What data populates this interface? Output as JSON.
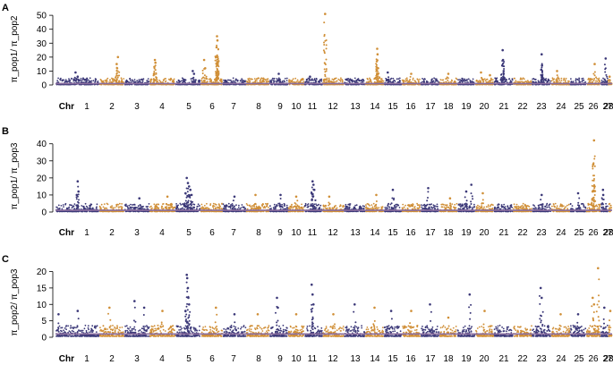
{
  "figure": {
    "colors": {
      "odd_chr": "#3b3878",
      "even_chr": "#d08f37",
      "baseline": "#8a6d9e"
    }
  },
  "chart_data": [
    {
      "type": "scatter",
      "panel_label": "A",
      "ylabel": "π_pop1/ π_pop2",
      "chr_axis_prefix": "Chr",
      "x_categories": [
        "1",
        "2",
        "3",
        "4",
        "5",
        "6",
        "7",
        "8",
        "9",
        "10",
        "11",
        "12",
        "13",
        "14",
        "15",
        "16",
        "17",
        "18",
        "19",
        "20",
        "21",
        "22",
        "23",
        "24",
        "25",
        "26",
        "27",
        "28"
      ],
      "yticks": [
        0,
        10,
        20,
        30,
        40,
        50
      ],
      "ylim": [
        0,
        52
      ],
      "baseline": 1,
      "grid": false,
      "peaks": [
        {
          "chr": "1",
          "pos": 0.45,
          "y": 9
        },
        {
          "chr": "1",
          "pos": 0.5,
          "y": 6
        },
        {
          "chr": "2",
          "pos": 0.75,
          "y": 20
        },
        {
          "chr": "2",
          "pos": 0.7,
          "y": 15
        },
        {
          "chr": "2",
          "pos": 0.72,
          "y": 12
        },
        {
          "chr": "4",
          "pos": 0.2,
          "y": 18
        },
        {
          "chr": "4",
          "pos": 0.22,
          "y": 16
        },
        {
          "chr": "4",
          "pos": 0.18,
          "y": 13
        },
        {
          "chr": "5",
          "pos": 0.7,
          "y": 10
        },
        {
          "chr": "5",
          "pos": 0.75,
          "y": 8
        },
        {
          "chr": "6",
          "pos": 0.15,
          "y": 18
        },
        {
          "chr": "6",
          "pos": 0.2,
          "y": 12
        },
        {
          "chr": "6",
          "pos": 0.75,
          "y": 35
        },
        {
          "chr": "6",
          "pos": 0.77,
          "y": 32
        },
        {
          "chr": "6",
          "pos": 0.73,
          "y": 27
        },
        {
          "chr": "6",
          "pos": 0.78,
          "y": 20
        },
        {
          "chr": "6",
          "pos": 0.74,
          "y": 15
        },
        {
          "chr": "9",
          "pos": 0.5,
          "y": 8
        },
        {
          "chr": "11",
          "pos": 0.3,
          "y": 6
        },
        {
          "chr": "12",
          "pos": 0.1,
          "y": 51
        },
        {
          "chr": "14",
          "pos": 0.65,
          "y": 26
        },
        {
          "chr": "14",
          "pos": 0.67,
          "y": 22
        },
        {
          "chr": "14",
          "pos": 0.63,
          "y": 17
        },
        {
          "chr": "14",
          "pos": 0.7,
          "y": 12
        },
        {
          "chr": "15",
          "pos": 0.2,
          "y": 9
        },
        {
          "chr": "16",
          "pos": 0.5,
          "y": 8
        },
        {
          "chr": "18",
          "pos": 0.5,
          "y": 8
        },
        {
          "chr": "20",
          "pos": 0.3,
          "y": 9
        },
        {
          "chr": "20",
          "pos": 0.8,
          "y": 7
        },
        {
          "chr": "21",
          "pos": 0.45,
          "y": 25
        },
        {
          "chr": "21",
          "pos": 0.47,
          "y": 18
        },
        {
          "chr": "21",
          "pos": 0.43,
          "y": 14
        },
        {
          "chr": "21",
          "pos": 0.5,
          "y": 10
        },
        {
          "chr": "23",
          "pos": 0.5,
          "y": 22
        },
        {
          "chr": "23",
          "pos": 0.52,
          "y": 14
        },
        {
          "chr": "23",
          "pos": 0.48,
          "y": 11
        },
        {
          "chr": "24",
          "pos": 0.3,
          "y": 10
        },
        {
          "chr": "26",
          "pos": 0.6,
          "y": 15
        },
        {
          "chr": "27",
          "pos": 0.7,
          "y": 19
        },
        {
          "chr": "28",
          "pos": 0.3,
          "y": 6
        }
      ]
    },
    {
      "type": "scatter",
      "panel_label": "B",
      "ylabel": "π_pop1/ π_pop3",
      "chr_axis_prefix": "Chr",
      "x_categories": [
        "1",
        "2",
        "3",
        "4",
        "5",
        "6",
        "7",
        "8",
        "9",
        "10",
        "11",
        "12",
        "13",
        "14",
        "15",
        "16",
        "17",
        "18",
        "19",
        "20",
        "21",
        "22",
        "23",
        "24",
        "25",
        "26",
        "27",
        "28"
      ],
      "yticks": [
        0,
        10,
        20,
        30,
        40
      ],
      "ylim": [
        0,
        43
      ],
      "baseline": 1,
      "grid": false,
      "peaks": [
        {
          "chr": "1",
          "pos": 0.5,
          "y": 18
        },
        {
          "chr": "1",
          "pos": 0.52,
          "y": 12
        },
        {
          "chr": "1",
          "pos": 0.48,
          "y": 10
        },
        {
          "chr": "3",
          "pos": 0.6,
          "y": 8
        },
        {
          "chr": "4",
          "pos": 0.7,
          "y": 9
        },
        {
          "chr": "5",
          "pos": 0.45,
          "y": 20
        },
        {
          "chr": "5",
          "pos": 0.5,
          "y": 17
        },
        {
          "chr": "5",
          "pos": 0.55,
          "y": 15
        },
        {
          "chr": "5",
          "pos": 0.6,
          "y": 13
        },
        {
          "chr": "5",
          "pos": 0.4,
          "y": 11
        },
        {
          "chr": "5",
          "pos": 0.65,
          "y": 10
        },
        {
          "chr": "7",
          "pos": 0.5,
          "y": 9
        },
        {
          "chr": "8",
          "pos": 0.4,
          "y": 10
        },
        {
          "chr": "9",
          "pos": 0.6,
          "y": 10
        },
        {
          "chr": "10",
          "pos": 0.5,
          "y": 9
        },
        {
          "chr": "11",
          "pos": 0.45,
          "y": 18
        },
        {
          "chr": "11",
          "pos": 0.5,
          "y": 16
        },
        {
          "chr": "11",
          "pos": 0.55,
          "y": 13
        },
        {
          "chr": "11",
          "pos": 0.4,
          "y": 11
        },
        {
          "chr": "12",
          "pos": 0.3,
          "y": 9
        },
        {
          "chr": "14",
          "pos": 0.6,
          "y": 10
        },
        {
          "chr": "15",
          "pos": 0.5,
          "y": 13
        },
        {
          "chr": "17",
          "pos": 0.4,
          "y": 14
        },
        {
          "chr": "18",
          "pos": 0.6,
          "y": 8
        },
        {
          "chr": "19",
          "pos": 0.5,
          "y": 12
        },
        {
          "chr": "19",
          "pos": 0.8,
          "y": 16
        },
        {
          "chr": "20",
          "pos": 0.4,
          "y": 11
        },
        {
          "chr": "23",
          "pos": 0.5,
          "y": 10
        },
        {
          "chr": "25",
          "pos": 0.5,
          "y": 11
        },
        {
          "chr": "26",
          "pos": 0.55,
          "y": 42
        },
        {
          "chr": "26",
          "pos": 0.5,
          "y": 28
        },
        {
          "chr": "26",
          "pos": 0.6,
          "y": 15
        },
        {
          "chr": "26",
          "pos": 0.45,
          "y": 12
        },
        {
          "chr": "27",
          "pos": 0.3,
          "y": 13
        },
        {
          "chr": "27",
          "pos": 0.35,
          "y": 10
        }
      ]
    },
    {
      "type": "scatter",
      "panel_label": "C",
      "ylabel": "π_pop2/ π_pop3",
      "chr_axis_prefix": "Chr",
      "x_categories": [
        "1",
        "2",
        "3",
        "4",
        "5",
        "6",
        "7",
        "8",
        "9",
        "10",
        "11",
        "12",
        "13",
        "14",
        "15",
        "16",
        "17",
        "18",
        "19",
        "20",
        "21",
        "22",
        "23",
        "24",
        "25",
        "26",
        "27",
        "28"
      ],
      "yticks": [
        0,
        5,
        10,
        15,
        20
      ],
      "ylim": [
        0,
        21.5
      ],
      "baseline": 1,
      "grid": false,
      "peaks": [
        {
          "chr": "1",
          "pos": 0.05,
          "y": 7
        },
        {
          "chr": "1",
          "pos": 0.5,
          "y": 8
        },
        {
          "chr": "2",
          "pos": 0.4,
          "y": 9
        },
        {
          "chr": "3",
          "pos": 0.4,
          "y": 11
        },
        {
          "chr": "3",
          "pos": 0.8,
          "y": 9
        },
        {
          "chr": "4",
          "pos": 0.5,
          "y": 8
        },
        {
          "chr": "5",
          "pos": 0.45,
          "y": 19
        },
        {
          "chr": "5",
          "pos": 0.47,
          "y": 18
        },
        {
          "chr": "5",
          "pos": 0.5,
          "y": 15
        },
        {
          "chr": "5",
          "pos": 0.52,
          "y": 12
        },
        {
          "chr": "5",
          "pos": 0.55,
          "y": 10
        },
        {
          "chr": "5",
          "pos": 0.4,
          "y": 8
        },
        {
          "chr": "6",
          "pos": 0.7,
          "y": 9
        },
        {
          "chr": "7",
          "pos": 0.5,
          "y": 7
        },
        {
          "chr": "8",
          "pos": 0.5,
          "y": 7
        },
        {
          "chr": "9",
          "pos": 0.4,
          "y": 12
        },
        {
          "chr": "9",
          "pos": 0.45,
          "y": 9
        },
        {
          "chr": "10",
          "pos": 0.5,
          "y": 7
        },
        {
          "chr": "11",
          "pos": 0.4,
          "y": 16
        },
        {
          "chr": "11",
          "pos": 0.45,
          "y": 13
        },
        {
          "chr": "11",
          "pos": 0.5,
          "y": 10
        },
        {
          "chr": "12",
          "pos": 0.5,
          "y": 7
        },
        {
          "chr": "13",
          "pos": 0.5,
          "y": 10
        },
        {
          "chr": "14",
          "pos": 0.5,
          "y": 9
        },
        {
          "chr": "15",
          "pos": 0.4,
          "y": 8
        },
        {
          "chr": "16",
          "pos": 0.5,
          "y": 8
        },
        {
          "chr": "17",
          "pos": 0.5,
          "y": 10
        },
        {
          "chr": "18",
          "pos": 0.5,
          "y": 6
        },
        {
          "chr": "19",
          "pos": 0.7,
          "y": 13
        },
        {
          "chr": "20",
          "pos": 0.5,
          "y": 8
        },
        {
          "chr": "23",
          "pos": 0.45,
          "y": 15
        },
        {
          "chr": "23",
          "pos": 0.5,
          "y": 12
        },
        {
          "chr": "24",
          "pos": 0.5,
          "y": 7
        },
        {
          "chr": "25",
          "pos": 0.5,
          "y": 7
        },
        {
          "chr": "26",
          "pos": 0.45,
          "y": 12
        },
        {
          "chr": "26",
          "pos": 0.55,
          "y": 10
        },
        {
          "chr": "26",
          "pos": 0.85,
          "y": 21
        },
        {
          "chr": "27",
          "pos": 0.5,
          "y": 9
        },
        {
          "chr": "28",
          "pos": 0.5,
          "y": 8
        }
      ]
    }
  ]
}
